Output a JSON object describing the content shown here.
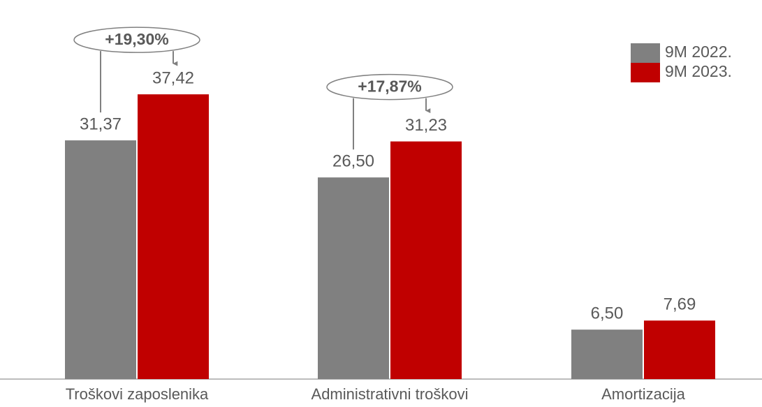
{
  "chart_data": {
    "type": "bar",
    "categories": [
      "Troškovi zaposlenika",
      "Administrativni troškovi",
      "Amortizacija"
    ],
    "series": [
      {
        "name": "9M 2022.",
        "color": "#808080",
        "values": [
          31.37,
          26.5,
          6.5
        ],
        "value_labels": [
          "31,37",
          "26,50",
          "6,50"
        ]
      },
      {
        "name": "9M 2023.",
        "color": "#c00000",
        "values": [
          37.42,
          31.23,
          7.69
        ],
        "value_labels": [
          "37,42",
          "31,23",
          "7,69"
        ]
      }
    ],
    "annotations": [
      "+19,30%",
      "+17,87%"
    ],
    "legend": "top-right"
  }
}
